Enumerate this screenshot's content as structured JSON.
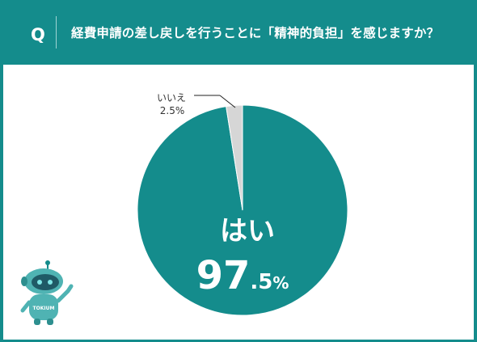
{
  "header": {
    "badge": "Q",
    "question": "経費申請の差し戻しを行うことに「精神的負担」を感じますか？"
  },
  "colors": {
    "teal": "#148c8c",
    "slice_yes": "#148c8c",
    "slice_no": "#d6d6d6",
    "background": "#ffffff"
  },
  "chart_data": {
    "type": "pie",
    "categories": [
      "はい",
      "いいえ"
    ],
    "values": [
      97.5,
      2.5
    ],
    "labels": [
      {
        "name": "はい",
        "value_main": "97",
        "value_decimal": ".5",
        "unit": "%"
      },
      {
        "name": "いいえ",
        "value_text": "2.5%"
      }
    ]
  },
  "mascot": {
    "icon": "robot-mascot-icon",
    "chest_text": "TOKIUM"
  }
}
